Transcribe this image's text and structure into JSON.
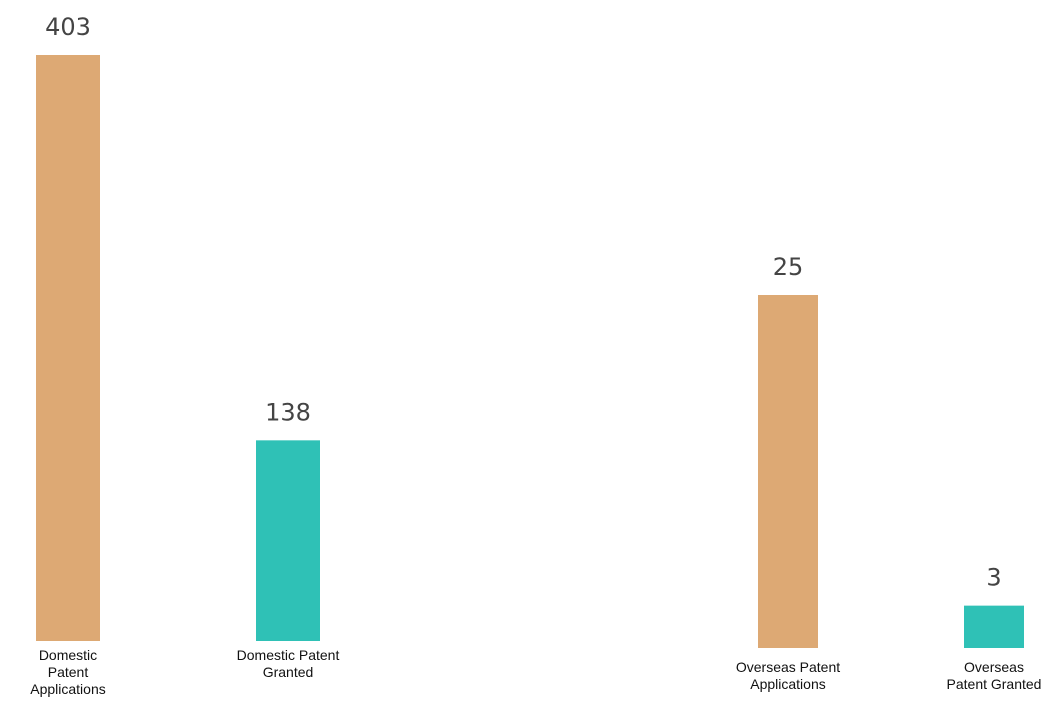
{
  "chart_data": [
    {
      "type": "bar",
      "categories": [
        "Domestic Patent Applications",
        "Domestic Patent Granted"
      ],
      "category_label_lines": [
        [
          "Domestic",
          "Patent",
          "Applications"
        ],
        [
          "Domestic Patent",
          "Granted"
        ]
      ],
      "values": [
        403,
        138
      ],
      "colors": [
        "#DDA974",
        "#2FC1B6"
      ],
      "ylim": [
        0,
        403
      ]
    },
    {
      "type": "bar",
      "categories": [
        "Overseas Patent Applications",
        "Overseas Patent Granted"
      ],
      "category_label_lines": [
        [
          "Overseas Patent",
          "Applications"
        ],
        [
          "Overseas",
          "Patent Granted"
        ]
      ],
      "values": [
        25,
        3
      ],
      "colors": [
        "#DDA974",
        "#2FC1B6"
      ],
      "ylim": [
        0,
        25
      ]
    }
  ]
}
